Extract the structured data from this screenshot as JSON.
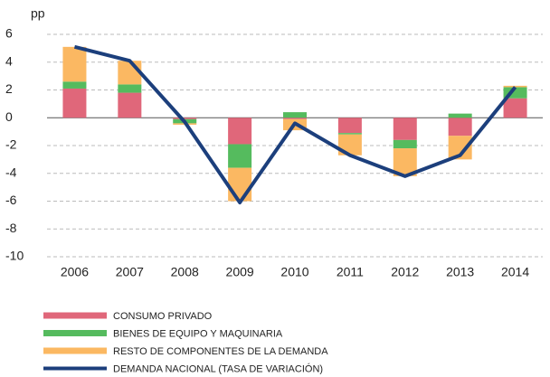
{
  "chart_data": {
    "type": "bar",
    "stacked": true,
    "y_axis_label": "pp",
    "categories": [
      "2006",
      "2007",
      "2008",
      "2009",
      "2010",
      "2011",
      "2012",
      "2013",
      "2014"
    ],
    "series": [
      {
        "name": "CONSUMO PRIVADO",
        "color": "#e0677a",
        "values": [
          2.1,
          1.8,
          -0.1,
          -1.9,
          -0.1,
          -1.1,
          -1.6,
          -1.3,
          1.4
        ]
      },
      {
        "name": "BIENES DE EQUIPO Y MAQUINARIA",
        "color": "#55bb5e",
        "values": [
          0.5,
          0.6,
          -0.3,
          -1.7,
          0.4,
          -0.1,
          -0.6,
          0.3,
          0.8
        ]
      },
      {
        "name": "RESTO DE COMPONENTES DE LA DEMANDA",
        "color": "#fbb862",
        "values": [
          2.5,
          1.7,
          -0.1,
          -2.4,
          -0.8,
          -1.5,
          -2.0,
          -1.7,
          0.1
        ]
      },
      {
        "name": "DEMANDA NACIONAL (TASA DE VARIACIÓN)",
        "color": "#1c3f7c",
        "type": "line",
        "values": [
          5.1,
          4.1,
          -0.3,
          -6.1,
          -0.4,
          -2.7,
          -4.2,
          -2.7,
          2.2
        ]
      }
    ],
    "ylim": [
      -10,
      6
    ],
    "yticks": [
      -10,
      -8,
      -6,
      -4,
      -2,
      0,
      2,
      4,
      6
    ],
    "grid": true
  }
}
